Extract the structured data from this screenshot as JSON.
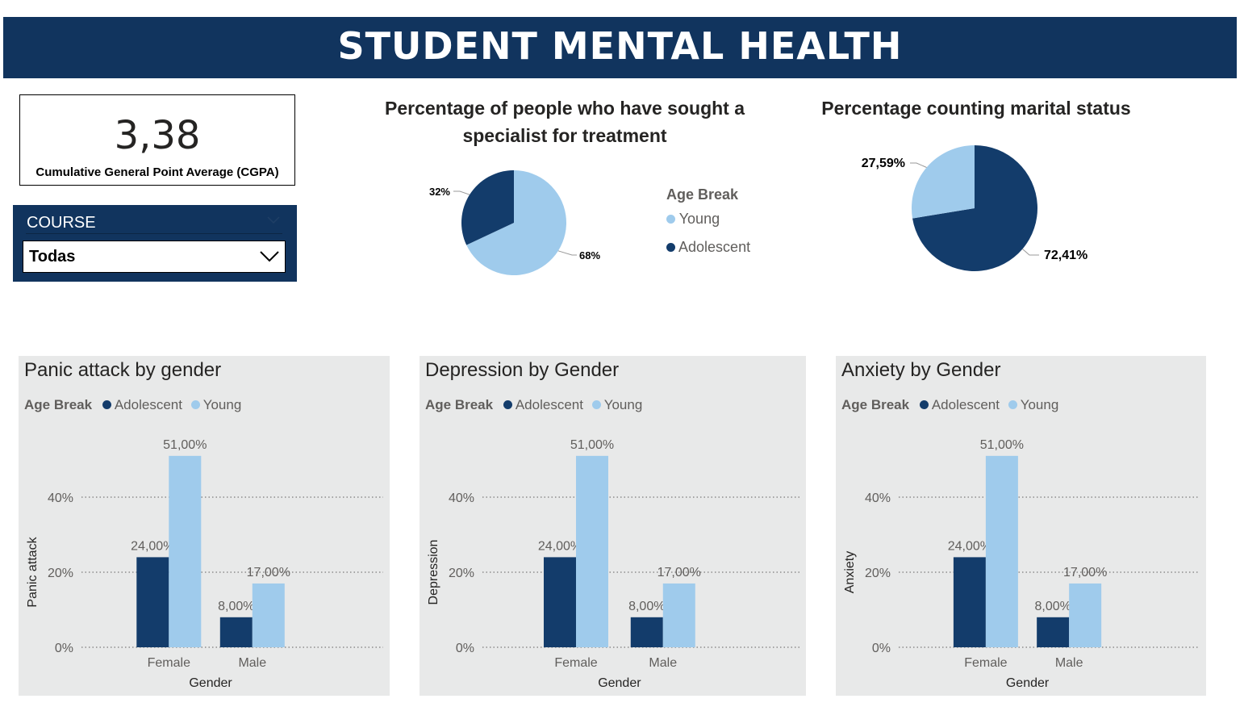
{
  "header": {
    "title": "STUDENT MENTAL HEALTH"
  },
  "colors": {
    "banner": "#11345e",
    "adolescent": "#133c6b",
    "young": "#9fcbec",
    "panel_bg": "#e8e9e9"
  },
  "kpi": {
    "value": "3,38",
    "label": "Cumulative General Point Average (CGPA)"
  },
  "slicer": {
    "title": "COURSE",
    "selected": "Todas",
    "icon": "chevron-down-icon"
  },
  "pies": [
    {
      "title_line1": "Percentage of people who have sought a",
      "title_line2": "specialist for treatment",
      "legend_title": "Age Break",
      "legend": [
        "Young",
        "Adolescent"
      ]
    },
    {
      "title_line1": "Percentage counting marital status"
    }
  ],
  "panels": [
    {
      "title": "Panic attack by gender",
      "ylabel": "Panic attack"
    },
    {
      "title": "Depression by Gender",
      "ylabel": "Depression"
    },
    {
      "title": "Anxiety by Gender",
      "ylabel": "Anxiety"
    }
  ],
  "bar_legend": {
    "title": "Age Break",
    "items": [
      "Adolescent",
      "Young"
    ]
  },
  "chart_data": [
    {
      "type": "pie",
      "title": "Percentage of people who have sought a specialist for treatment",
      "legend_title": "Age Break",
      "slices": [
        {
          "name": "Young",
          "value": 68,
          "label": "68%",
          "color": "#9fcbec"
        },
        {
          "name": "Adolescent",
          "value": 32,
          "label": "32%",
          "color": "#133c6b"
        }
      ]
    },
    {
      "type": "pie",
      "title": "Percentage counting marital status",
      "slices": [
        {
          "value": 72.41,
          "label": "72,41%",
          "color": "#133c6b"
        },
        {
          "value": 27.59,
          "label": "27,59%",
          "color": "#9fcbec"
        }
      ]
    },
    {
      "type": "bar",
      "title": "Panic attack by gender",
      "xlabel": "Gender",
      "ylabel": "Panic attack",
      "categories": [
        "Female",
        "Male"
      ],
      "series": [
        {
          "name": "Adolescent",
          "values": [
            24,
            8
          ],
          "labels": [
            "24,00%",
            "8,00%"
          ],
          "color": "#133c6b"
        },
        {
          "name": "Young",
          "values": [
            51,
            17
          ],
          "labels": [
            "51,00%",
            "17,00%"
          ],
          "color": "#9fcbec"
        }
      ],
      "yticks": [
        "0%",
        "20%",
        "40%"
      ],
      "ylim": [
        0,
        51
      ],
      "grid": true,
      "legend_position": "top-left"
    },
    {
      "type": "bar",
      "title": "Depression by Gender",
      "xlabel": "Gender",
      "ylabel": "Depression",
      "categories": [
        "Female",
        "Male"
      ],
      "series": [
        {
          "name": "Adolescent",
          "values": [
            24,
            8
          ],
          "labels": [
            "24,00%",
            "8,00%"
          ],
          "color": "#133c6b"
        },
        {
          "name": "Young",
          "values": [
            51,
            17
          ],
          "labels": [
            "51,00%",
            "17,00%"
          ],
          "color": "#9fcbec"
        }
      ],
      "yticks": [
        "0%",
        "20%",
        "40%"
      ],
      "ylim": [
        0,
        51
      ],
      "grid": true,
      "legend_position": "top-left"
    },
    {
      "type": "bar",
      "title": "Anxiety by Gender",
      "xlabel": "Gender",
      "ylabel": "Anxiety",
      "categories": [
        "Female",
        "Male"
      ],
      "series": [
        {
          "name": "Adolescent",
          "values": [
            24,
            8
          ],
          "labels": [
            "24,00%",
            "8,00%"
          ],
          "color": "#133c6b"
        },
        {
          "name": "Young",
          "values": [
            51,
            17
          ],
          "labels": [
            "51,00%",
            "17,00%"
          ],
          "color": "#9fcbec"
        }
      ],
      "yticks": [
        "0%",
        "20%",
        "40%"
      ],
      "ylim": [
        0,
        51
      ],
      "grid": true,
      "legend_position": "top-left"
    }
  ]
}
